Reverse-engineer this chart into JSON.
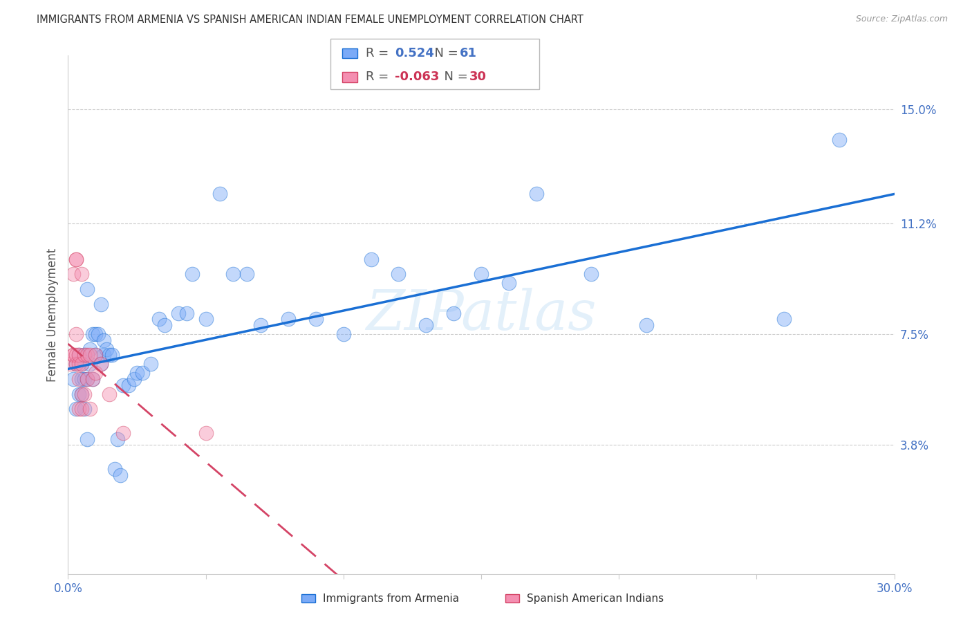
{
  "title": "IMMIGRANTS FROM ARMENIA VS SPANISH AMERICAN INDIAN FEMALE UNEMPLOYMENT CORRELATION CHART",
  "source": "Source: ZipAtlas.com",
  "ylabel": "Female Unemployment",
  "x_min": 0.0,
  "x_max": 0.3,
  "y_min": -0.005,
  "y_max": 0.168,
  "x_ticks": [
    0.0,
    0.05,
    0.1,
    0.15,
    0.2,
    0.25,
    0.3
  ],
  "x_tick_labels": [
    "0.0%",
    "",
    "",
    "",
    "",
    "",
    "30.0%"
  ],
  "y_tick_right": [
    0.038,
    0.075,
    0.112,
    0.15
  ],
  "y_tick_right_labels": [
    "3.8%",
    "7.5%",
    "11.2%",
    "15.0%"
  ],
  "r1": "0.524",
  "n1": "61",
  "r2": "-0.063",
  "n2": "30",
  "series1_color": "#7baaf7",
  "series2_color": "#f48fb1",
  "trendline1_color": "#1a6fd4",
  "trendline2_color": "#d44466",
  "watermark": "ZIPatlas",
  "label1": "Immigrants from Armenia",
  "label2": "Spanish American Indians",
  "blue_x": [
    0.002,
    0.003,
    0.003,
    0.004,
    0.004,
    0.005,
    0.005,
    0.005,
    0.006,
    0.006,
    0.006,
    0.007,
    0.007,
    0.007,
    0.008,
    0.008,
    0.009,
    0.009,
    0.01,
    0.01,
    0.011,
    0.012,
    0.012,
    0.013,
    0.013,
    0.014,
    0.015,
    0.016,
    0.017,
    0.018,
    0.019,
    0.02,
    0.022,
    0.024,
    0.025,
    0.027,
    0.03,
    0.033,
    0.035,
    0.04,
    0.043,
    0.045,
    0.05,
    0.055,
    0.06,
    0.065,
    0.07,
    0.08,
    0.09,
    0.1,
    0.11,
    0.12,
    0.13,
    0.14,
    0.15,
    0.16,
    0.17,
    0.19,
    0.21,
    0.26,
    0.28
  ],
  "blue_y": [
    0.06,
    0.05,
    0.065,
    0.055,
    0.068,
    0.06,
    0.065,
    0.055,
    0.05,
    0.06,
    0.068,
    0.04,
    0.06,
    0.09,
    0.065,
    0.07,
    0.06,
    0.075,
    0.068,
    0.075,
    0.075,
    0.065,
    0.085,
    0.068,
    0.073,
    0.07,
    0.068,
    0.068,
    0.03,
    0.04,
    0.028,
    0.058,
    0.058,
    0.06,
    0.062,
    0.062,
    0.065,
    0.08,
    0.078,
    0.082,
    0.082,
    0.095,
    0.08,
    0.122,
    0.095,
    0.095,
    0.078,
    0.08,
    0.08,
    0.075,
    0.1,
    0.095,
    0.078,
    0.082,
    0.095,
    0.092,
    0.122,
    0.095,
    0.078,
    0.08,
    0.14
  ],
  "pink_x": [
    0.001,
    0.002,
    0.002,
    0.002,
    0.003,
    0.003,
    0.003,
    0.003,
    0.003,
    0.004,
    0.004,
    0.004,
    0.004,
    0.005,
    0.005,
    0.005,
    0.005,
    0.006,
    0.006,
    0.007,
    0.007,
    0.008,
    0.008,
    0.009,
    0.01,
    0.01,
    0.012,
    0.015,
    0.02,
    0.05
  ],
  "pink_y": [
    0.065,
    0.068,
    0.068,
    0.095,
    0.065,
    0.068,
    0.075,
    0.1,
    0.1,
    0.05,
    0.06,
    0.065,
    0.068,
    0.05,
    0.055,
    0.065,
    0.095,
    0.055,
    0.068,
    0.06,
    0.068,
    0.05,
    0.068,
    0.06,
    0.062,
    0.068,
    0.065,
    0.055,
    0.042,
    0.042
  ]
}
